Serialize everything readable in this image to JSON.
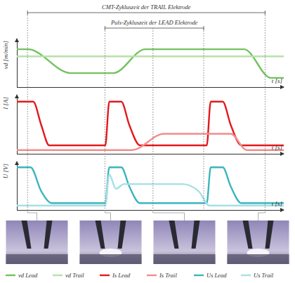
{
  "chart_data": [
    {
      "type": "line",
      "y_label": "vd [m/min]",
      "x_label": "t [s]",
      "xlim": [
        0,
        100
      ],
      "ylim": [
        0,
        10
      ],
      "tick_labels": false,
      "grid": false,
      "legend": "bottom",
      "annotations": [
        {
          "text": "CMT-Zykluszeit der TRAIL Elektrode",
          "from": 4,
          "to": 93
        },
        {
          "text": "Puls-Zykluszeit der LEAD Elektrode",
          "from": 33,
          "to": 70
        }
      ],
      "series": [
        {
          "name": "vd Lead",
          "color": "#72c25f",
          "x": [
            0,
            4,
            20,
            36,
            48,
            85,
            95,
            100
          ],
          "values": [
            8,
            8,
            3,
            3,
            8,
            8,
            2,
            2
          ]
        },
        {
          "name": "vd Trail",
          "color": "#b7e2a6",
          "x": [
            0,
            100
          ],
          "values": [
            6.5,
            6.5
          ]
        }
      ]
    },
    {
      "type": "line",
      "y_label": "I [A]",
      "x_label": "t [s]",
      "xlim": [
        0,
        100
      ],
      "ylim": [
        0,
        10
      ],
      "tick_labels": false,
      "grid": false,
      "legend": "bottom",
      "series": [
        {
          "name": "Is Lead",
          "color": "#e3191c",
          "x": [
            0,
            6,
            9,
            12,
            33,
            34.5,
            39,
            42,
            46,
            71,
            72.5,
            77,
            80,
            84,
            100
          ],
          "values": [
            9,
            9,
            5,
            1.5,
            1.5,
            9,
            9,
            5,
            1.5,
            1.5,
            9,
            9,
            5,
            1.5,
            1.5
          ]
        },
        {
          "name": "Is Trail",
          "color": "#f28c8c",
          "x": [
            0,
            43,
            55,
            80,
            86,
            100
          ],
          "values": [
            0.7,
            0.7,
            3.5,
            3.5,
            0.7,
            0.7
          ]
        }
      ]
    },
    {
      "type": "line",
      "y_label": "U [V]",
      "x_label": "t [s]",
      "xlim": [
        0,
        100
      ],
      "ylim": [
        0,
        10
      ],
      "tick_labels": false,
      "grid": false,
      "legend": "bottom",
      "series": [
        {
          "name": "Us Lead",
          "color": "#3cb5bd",
          "x": [
            0,
            5,
            9,
            13,
            33,
            34.5,
            39,
            42,
            46,
            71,
            72.5,
            77,
            80,
            84,
            100
          ],
          "values": [
            9,
            9,
            4,
            1.5,
            1.5,
            9,
            9,
            5,
            1.5,
            1.5,
            9,
            9,
            5,
            1.5,
            1.5
          ]
        },
        {
          "name": "Us Trail",
          "color": "#a6dfe4",
          "x": [
            0,
            33,
            34.5,
            37,
            40,
            62,
            68,
            72,
            100
          ],
          "values": [
            1,
            1,
            7.5,
            4.5,
            5.5,
            5.5,
            4,
            1,
            1
          ]
        }
      ]
    }
  ],
  "snapshots": [
    4,
    33,
    51,
    93
  ]
}
